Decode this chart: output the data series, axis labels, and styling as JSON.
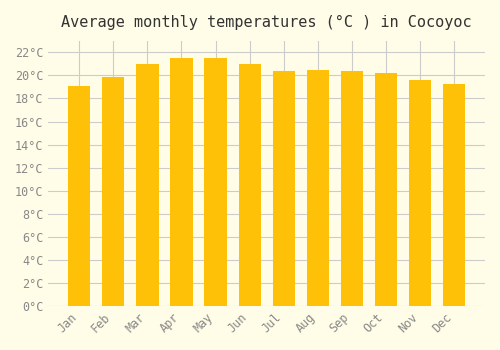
{
  "title": "Average monthly temperatures (°C ) in Cocoyoc",
  "months": [
    "Jan",
    "Feb",
    "Mar",
    "Apr",
    "May",
    "Jun",
    "Jul",
    "Aug",
    "Sep",
    "Oct",
    "Nov",
    "Dec"
  ],
  "values": [
    19.1,
    19.9,
    21.0,
    21.5,
    21.5,
    21.0,
    20.4,
    20.5,
    20.4,
    20.2,
    19.6,
    19.3
  ],
  "bar_color_top": "#FFC107",
  "bar_color_bottom": "#FFB300",
  "bar_edge_color": "#E6A800",
  "background_color": "#FFFDE7",
  "grid_color": "#CCCCCC",
  "text_color": "#888888",
  "ylim": [
    0,
    23
  ],
  "yticks": [
    0,
    2,
    4,
    6,
    8,
    10,
    12,
    14,
    16,
    18,
    20,
    22
  ],
  "title_fontsize": 11,
  "tick_fontsize": 8.5
}
